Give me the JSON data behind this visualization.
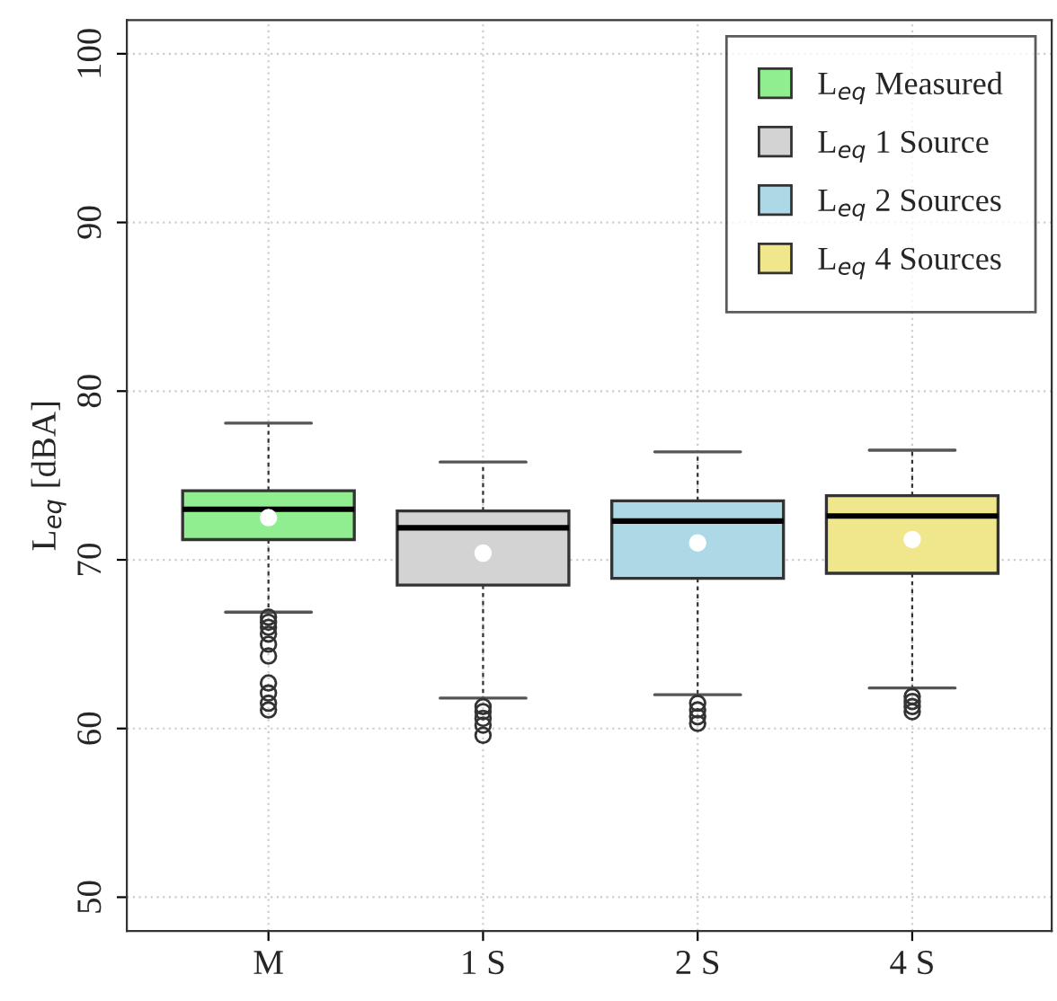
{
  "chart_data": {
    "type": "box",
    "ylabel": "L$_{eq}$ [dBA]",
    "categories": [
      "M",
      "1 S",
      "2 S",
      "4 S"
    ],
    "series": [
      {
        "name": "L$_{eq}$ Measured",
        "color": "#90ee90",
        "boxes": [
          {
            "low": 66.9,
            "q1": 71.2,
            "median": 73.0,
            "q3": 74.1,
            "high": 78.1,
            "mean": 72.5,
            "outliers": [
              66.6,
              66.3,
              66.0,
              65.6,
              65.0,
              64.3,
              62.7,
              62.1,
              61.5,
              61.1
            ]
          },
          null,
          null,
          null
        ]
      },
      {
        "name": "L$_{eq}$ 1 Source",
        "color": "#d3d3d3",
        "boxes": [
          null,
          {
            "low": 61.8,
            "q1": 68.5,
            "median": 71.9,
            "q3": 72.9,
            "high": 75.8,
            "mean": 70.4,
            "outliers": [
              61.3,
              61.0,
              60.6,
              60.2,
              59.6
            ]
          },
          null,
          null
        ]
      },
      {
        "name": "L$_{eq}$ 2 Sources",
        "color": "#add8e6",
        "boxes": [
          null,
          null,
          {
            "low": 62.0,
            "q1": 68.9,
            "median": 72.3,
            "q3": 73.5,
            "high": 76.4,
            "mean": 71.0,
            "outliers": [
              61.5,
              61.1,
              60.7,
              60.3
            ]
          },
          null
        ]
      },
      {
        "name": "L$_{eq}$ 4 Sources",
        "color": "#f0e68c",
        "boxes": [
          null,
          null,
          null,
          {
            "low": 62.4,
            "q1": 69.2,
            "median": 72.6,
            "q3": 73.8,
            "high": 76.5,
            "mean": 71.2,
            "outliers": [
              61.9,
              61.6,
              61.3,
              61.0
            ]
          }
        ]
      }
    ],
    "ylim": [
      48,
      102
    ],
    "yticks": [
      50,
      60,
      70,
      80,
      90,
      100
    ],
    "grid": true,
    "legend": "top right"
  }
}
